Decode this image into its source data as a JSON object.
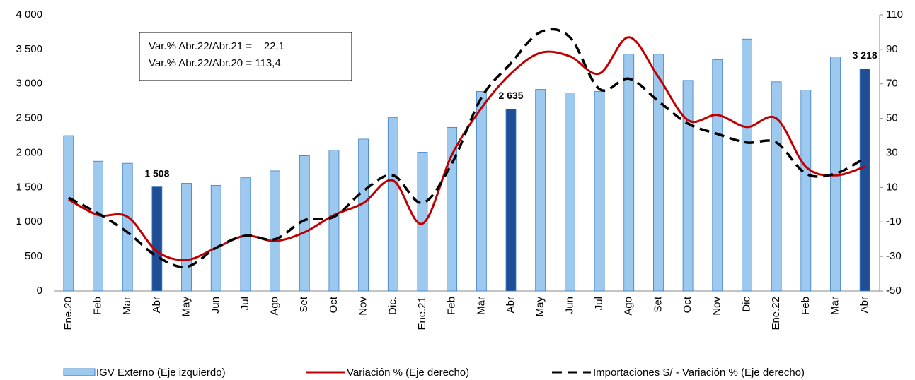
{
  "chart_data": {
    "type": "bar",
    "categories": [
      "Ene.20",
      "Feb",
      "Mar",
      "Abr",
      "May",
      "Jun",
      "Jul",
      "Ago",
      "Set",
      "Oct",
      "Nov",
      "Dic.",
      "Ene.21",
      "Feb",
      "Mar",
      "Abr",
      "May",
      "Jun",
      "Jul",
      "Ago",
      "Set",
      "Oct",
      "Nov",
      "Dic",
      "Ene.22",
      "Feb",
      "Mar",
      "Abr"
    ],
    "series": [
      {
        "name": "IGV Externo (Eje izquierdo)",
        "type": "bar",
        "color": "#9dc9ef",
        "edge": "#3a7fc4",
        "colors": [
          "#9dc9ef",
          "#9dc9ef",
          "#9dc9ef",
          "#1f4e96",
          "#9dc9ef",
          "#9dc9ef",
          "#9dc9ef",
          "#9dc9ef",
          "#9dc9ef",
          "#9dc9ef",
          "#9dc9ef",
          "#9dc9ef",
          "#9dc9ef",
          "#9dc9ef",
          "#9dc9ef",
          "#1f4e96",
          "#9dc9ef",
          "#9dc9ef",
          "#9dc9ef",
          "#9dc9ef",
          "#9dc9ef",
          "#9dc9ef",
          "#9dc9ef",
          "#9dc9ef",
          "#9dc9ef",
          "#9dc9ef",
          "#9dc9ef",
          "#1f4e96"
        ],
        "values": [
          2250,
          1880,
          1850,
          1508,
          1560,
          1530,
          1640,
          1740,
          1960,
          2040,
          2200,
          2510,
          2010,
          2370,
          2890,
          2635,
          2920,
          2870,
          2890,
          3430,
          3430,
          3050,
          3350,
          3650,
          3030,
          2910,
          3390,
          3218
        ],
        "value_labels": [
          null,
          null,
          null,
          "1 508",
          null,
          null,
          null,
          null,
          null,
          null,
          null,
          null,
          null,
          null,
          null,
          "2 635",
          null,
          null,
          null,
          null,
          null,
          null,
          null,
          null,
          null,
          null,
          null,
          "3 218"
        ]
      },
      {
        "name": "Variación % (Eje derecho)",
        "type": "line",
        "axis": "y2",
        "color": "#c00000",
        "dashed": false,
        "values": [
          3,
          -6,
          -7,
          -27,
          -32,
          -25,
          -18,
          -21,
          -16,
          -6,
          1,
          14,
          -11,
          29,
          56,
          76,
          88,
          86,
          76,
          97,
          74,
          49,
          52,
          45,
          50,
          22,
          17,
          22
        ]
      },
      {
        "name": "Importaciones S/ - Variación % (Eje derecho)",
        "type": "line",
        "axis": "y2",
        "color": "#000000",
        "dashed": true,
        "values": [
          4,
          -5,
          -16,
          -30,
          -36,
          -25,
          -18,
          -20,
          -9,
          -7,
          8,
          17,
          1,
          24,
          62,
          82,
          100,
          97,
          67,
          73,
          60,
          47,
          41,
          36,
          36,
          18,
          18,
          27
        ]
      }
    ],
    "ylim": [
      0,
      4000
    ],
    "yticks": [
      0,
      500,
      {
        "value": 1000,
        "label": "1 000"
      },
      {
        "value": 1500,
        "label": "1 500"
      },
      {
        "value": 2000,
        "label": "2 000"
      },
      {
        "value": 2500,
        "label": "2 500"
      },
      {
        "value": 3000,
        "label": "3 000"
      },
      {
        "value": 3500,
        "label": "3 500"
      },
      {
        "value": 4000,
        "label": "4 000"
      }
    ],
    "y2lim": [
      -50,
      110
    ],
    "y2ticks": [
      -50,
      -30,
      -10,
      10,
      30,
      50,
      70,
      90,
      110
    ],
    "annotations": [
      "Var.% Abr.22/Abr.21 =    22,1",
      "Var.% Abr.22/Abr.20 = 113,4"
    ],
    "legend": "bottom"
  }
}
